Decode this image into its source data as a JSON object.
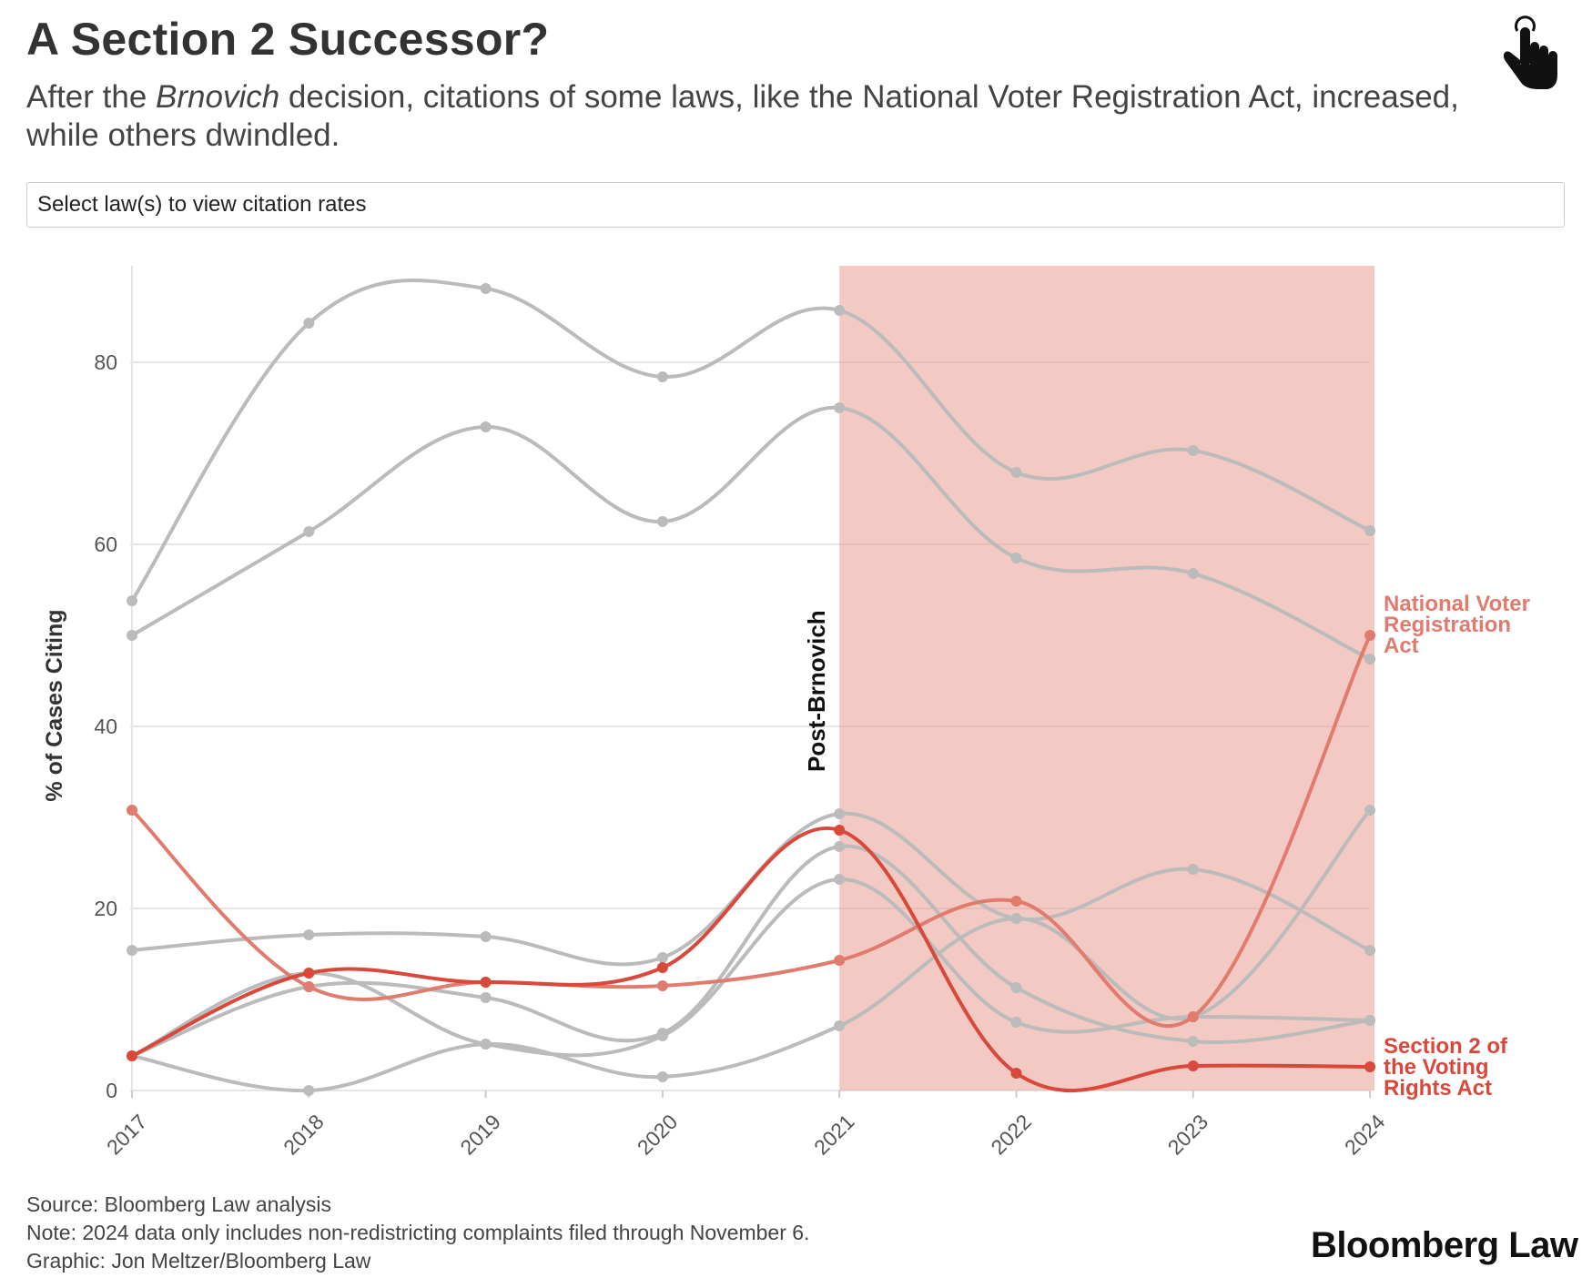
{
  "header": {
    "title": "A Section 2 Successor?",
    "subtitle_before": "After the ",
    "subtitle_italic": "Brnovich",
    "subtitle_after": " decision, citations of some laws, like the National Voter Registration Act, increased, while others dwindled."
  },
  "controls": {
    "select_label": "Select law(s) to view citation rates",
    "hand_icon": "pointer-hand-icon"
  },
  "chart_data": {
    "type": "line",
    "x": [
      "2017",
      "2018",
      "2019",
      "2020",
      "2021",
      "2022",
      "2023",
      "2024"
    ],
    "ylabel": "% of Cases Citing",
    "ylim": [
      0,
      90
    ],
    "yticks": [
      0,
      20,
      40,
      60,
      80
    ],
    "grid": true,
    "shaded_region": {
      "label": "Post-Brnovich",
      "x_start": "2021",
      "x_end": "2024",
      "color": "#e8938a"
    },
    "series": [
      {
        "values": [
          53.8,
          84.3,
          88.1,
          78.4,
          85.7,
          67.9,
          70.3,
          61.5
        ],
        "color": "#bbbbbb"
      },
      {
        "values": [
          50.0,
          61.4,
          72.9,
          62.5,
          75.0,
          58.5,
          56.8,
          47.4
        ],
        "color": "#bbbbbb"
      },
      {
        "values": [
          15.4,
          17.1,
          16.9,
          14.6,
          30.4,
          18.9,
          24.3,
          15.4
        ],
        "color": "#bbbbbb"
      },
      {
        "values": [
          3.8,
          11.4,
          10.2,
          6.3,
          26.8,
          11.3,
          5.4,
          7.7
        ],
        "color": "#bbbbbb"
      },
      {
        "values": [
          3.8,
          12.9,
          5.1,
          6.0,
          23.2,
          7.5,
          8.1,
          7.7
        ],
        "color": "#bbbbbb"
      },
      {
        "values": [
          3.8,
          0.0,
          5.1,
          1.5,
          7.1,
          18.9,
          8.1,
          30.8
        ],
        "color": "#bbbbbb"
      },
      {
        "name": "National Voter Registration Act",
        "values": [
          30.8,
          11.4,
          11.9,
          11.5,
          14.3,
          20.8,
          8.1,
          50.0
        ],
        "color": "#e07b6e"
      },
      {
        "name": "Section 2 of the Voting Rights Act",
        "values": [
          3.8,
          12.9,
          11.9,
          13.5,
          28.6,
          1.9,
          2.7,
          2.6
        ],
        "color": "#d9483b"
      }
    ]
  },
  "footer": {
    "source": "Source: Bloomberg Law analysis",
    "note": "Note: 2024 data only includes non-redistricting complaints filed through November 6.",
    "credit": "Graphic: Jon Meltzer/Bloomberg Law"
  },
  "brand": {
    "logo_text": "Bloomberg Law"
  }
}
